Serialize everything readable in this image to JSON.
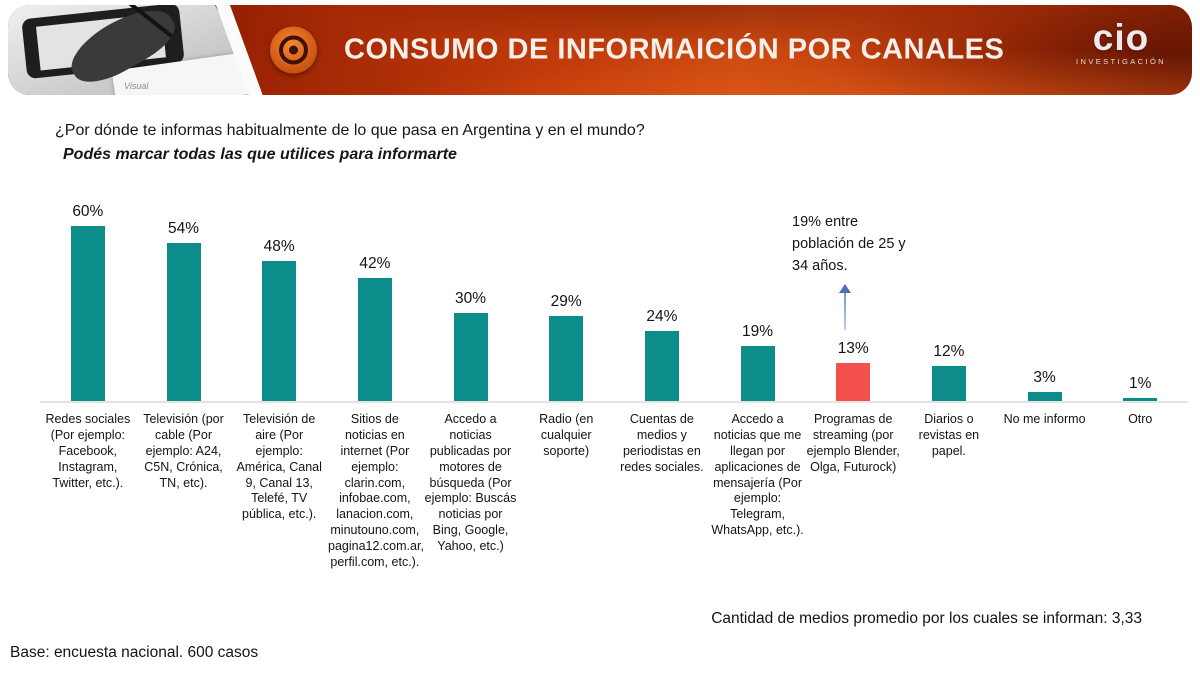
{
  "header": {
    "title": "CONSUMO DE INFORMAICIÓN POR CANALES",
    "photo_caption": "Visual",
    "icon": "bullseye-target-icon",
    "logo": {
      "name": "cio",
      "subtitle": "INVESTIGACIÓN"
    },
    "colors": {
      "band_dark": "#5E0F00",
      "band_bright": "#CC4A10",
      "title_text": "#F7EFE9"
    }
  },
  "question": {
    "line1": "¿Por dónde te informas habitualmente de lo que pasa en Argentina y en el mundo?",
    "line2": "Podés marcar todas las que utilices para informarte"
  },
  "chart_data": {
    "type": "bar",
    "title": "",
    "xlabel": "",
    "ylabel": "",
    "ylim": [
      0,
      60
    ],
    "grid": false,
    "legend": false,
    "data_label_format": "percent",
    "categories": [
      "Redes sociales (Por ejemplo: Facebook, Instagram, Twitter, etc.).",
      "Televisión (por cable (Por ejemplo: A24, C5N, Crónica, TN, etc).",
      "Televisión de aire (Por ejemplo: América, Canal 9, Canal 13, Telefé, TV pública, etc.).",
      "Sitios de noticias en internet (Por ejemplo: clarin.com, infobae.com, lanacion.com, minutouno.com, pagina12.com.ar, perfil.com, etc.).",
      "Accedo a noticias publicadas por motores de búsqueda (Por ejemplo: Buscás noticias por Bing, Google, Yahoo, etc.)",
      "Radio (en cualquier soporte)",
      "Cuentas de medios y periodistas en redes sociales.",
      "Accedo a noticias que me llegan por aplicaciones de mensajería (Por ejemplo: Telegram, WhatsApp, etc.).",
      "Programas de streaming (por ejemplo Blender, Olga, Futurock)",
      "Diarios o revistas en papel.",
      "No me informo",
      "Otro"
    ],
    "values": [
      60,
      54,
      48,
      42,
      30,
      29,
      24,
      19,
      13,
      12,
      3,
      1
    ],
    "value_labels": [
      "60%",
      "54%",
      "48%",
      "42%",
      "30%",
      "29%",
      "24%",
      "19%",
      "13%",
      "12%",
      "3%",
      "1%"
    ],
    "bar_colors": {
      "default": "#0D8C8C",
      "highlight": "#F4514E"
    },
    "highlight_index": 8,
    "annotation": {
      "text": "19% entre población de 25 y 34 años.",
      "applies_to": "Programas de streaming",
      "arrow_color": "#4A6FB5"
    }
  },
  "footer": {
    "average_note": "Cantidad de medios promedio por los cuales se informan: 3,33",
    "base_note": "Base: encuesta nacional. 600 casos"
  }
}
